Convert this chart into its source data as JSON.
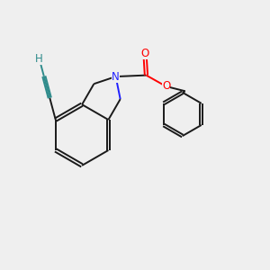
{
  "background_color": "#efefef",
  "bond_color": "#1a1a1a",
  "nitrogen_color": "#2020ff",
  "oxygen_color": "#ff0000",
  "alkyne_color": "#2e8b8b",
  "line_width": 1.4,
  "figsize": [
    3.0,
    3.0
  ],
  "dpi": 100,
  "xlim": [
    0,
    10
  ],
  "ylim": [
    0,
    10
  ]
}
